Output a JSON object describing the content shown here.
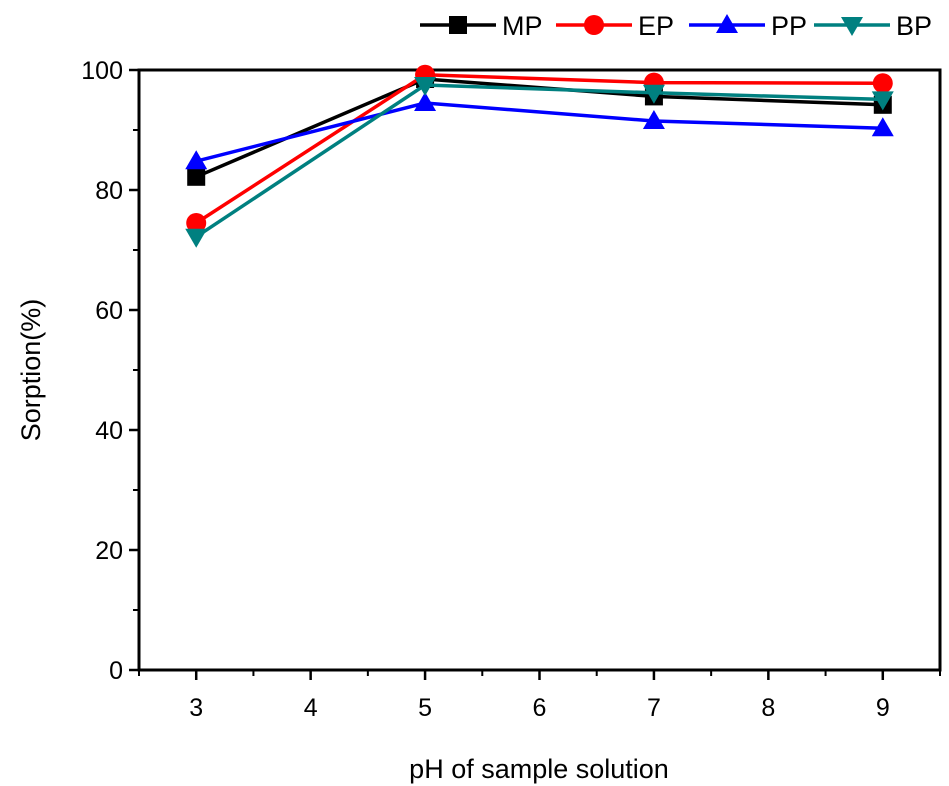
{
  "chart_data": {
    "type": "line",
    "title": "",
    "xlabel": "pH of sample solution",
    "ylabel": "Sorption(%)",
    "x": [
      3,
      5,
      7,
      9
    ],
    "xlim": [
      2.5,
      9.5
    ],
    "ylim": [
      0,
      100
    ],
    "x_ticks": [
      3,
      4,
      5,
      6,
      7,
      8,
      9
    ],
    "y_ticks": [
      0,
      20,
      40,
      60,
      80,
      100
    ],
    "grid": false,
    "legend_position": "top",
    "series": [
      {
        "name": "MP",
        "values": [
          82.2,
          98.5,
          95.6,
          94.2
        ],
        "color": "#000000",
        "marker": "square"
      },
      {
        "name": "EP",
        "values": [
          74.5,
          99.2,
          97.9,
          97.8
        ],
        "color": "#ff0000",
        "marker": "circle"
      },
      {
        "name": "PP",
        "values": [
          84.8,
          94.5,
          91.5,
          90.3
        ],
        "color": "#0000ff",
        "marker": "triangle-up"
      },
      {
        "name": "BP",
        "values": [
          72.2,
          97.5,
          96.2,
          95.1
        ],
        "color": "#008080",
        "marker": "triangle-down"
      }
    ]
  }
}
